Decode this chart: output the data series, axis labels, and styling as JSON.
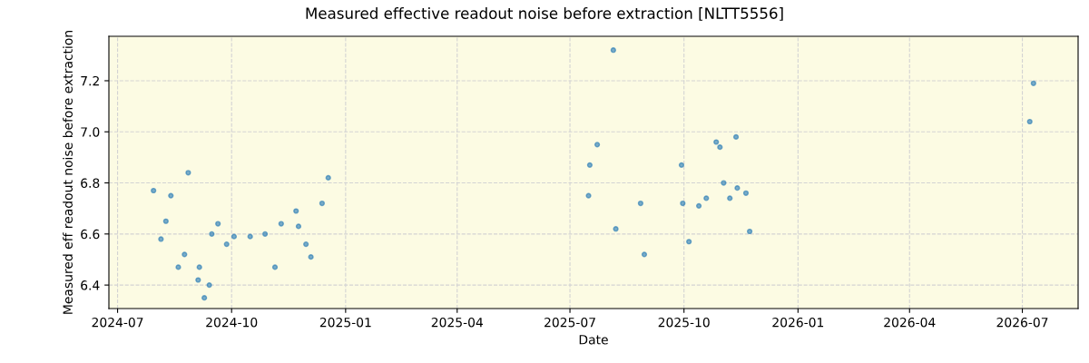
{
  "chart_data": {
    "type": "scatter",
    "title": "Measured effective readout noise before extraction [NLTT5556]",
    "xlabel": "Date",
    "ylabel": "Measured eff readout noise before extraction",
    "x": [
      "2024-07-30",
      "2024-08-05",
      "2024-08-09",
      "2024-08-13",
      "2024-08-19",
      "2024-08-24",
      "2024-08-27",
      "2024-09-04",
      "2024-09-05",
      "2024-09-09",
      "2024-09-13",
      "2024-09-15",
      "2024-09-20",
      "2024-09-27",
      "2024-10-03",
      "2024-10-16",
      "2024-10-28",
      "2024-11-05",
      "2024-11-10",
      "2024-11-22",
      "2024-11-24",
      "2024-11-30",
      "2024-12-04",
      "2024-12-13",
      "2024-12-18",
      "2025-07-16",
      "2025-07-17",
      "2025-07-23",
      "2025-08-05",
      "2025-08-07",
      "2025-08-27",
      "2025-08-30",
      "2025-09-29",
      "2025-09-30",
      "2025-10-05",
      "2025-10-13",
      "2025-10-19",
      "2025-10-27",
      "2025-10-30",
      "2025-11-02",
      "2025-11-07",
      "2025-11-12",
      "2025-11-13",
      "2025-11-20",
      "2025-11-23",
      "2026-07-07",
      "2026-07-10"
    ],
    "series": [
      {
        "color": "#1f77b4",
        "values": [
          6.77,
          6.58,
          6.65,
          6.75,
          6.47,
          6.52,
          6.84,
          6.42,
          6.47,
          6.35,
          6.4,
          6.6,
          6.64,
          6.56,
          6.59,
          6.59,
          6.6,
          6.47,
          6.64,
          6.69,
          6.63,
          6.56,
          6.51,
          6.72,
          6.82,
          6.75,
          6.87,
          6.95,
          7.32,
          6.62,
          6.72,
          6.52,
          6.87,
          6.72,
          6.57,
          6.71,
          6.74,
          6.96,
          6.94,
          6.8,
          6.74,
          6.98,
          6.78,
          6.76,
          6.61,
          7.04,
          7.19
        ]
      }
    ],
    "xlim": [
      "2024-06-24",
      "2026-08-15"
    ],
    "ylim": [
      6.308,
      7.374
    ],
    "xticks": [
      {
        "value": "2024-07-01",
        "label": "2024-07"
      },
      {
        "value": "2024-10-01",
        "label": "2024-10"
      },
      {
        "value": "2025-01-01",
        "label": "2025-01"
      },
      {
        "value": "2025-04-01",
        "label": "2025-04"
      },
      {
        "value": "2025-07-01",
        "label": "2025-07"
      },
      {
        "value": "2025-10-01",
        "label": "2025-10"
      },
      {
        "value": "2026-01-01",
        "label": "2026-01"
      },
      {
        "value": "2026-04-01",
        "label": "2026-04"
      },
      {
        "value": "2026-07-01",
        "label": "2026-07"
      }
    ],
    "yticks": [
      6.4,
      6.6,
      6.8,
      {
        "value": 7.0,
        "label": "7.0"
      },
      7.2
    ],
    "grid": true,
    "marker": "circle"
  }
}
